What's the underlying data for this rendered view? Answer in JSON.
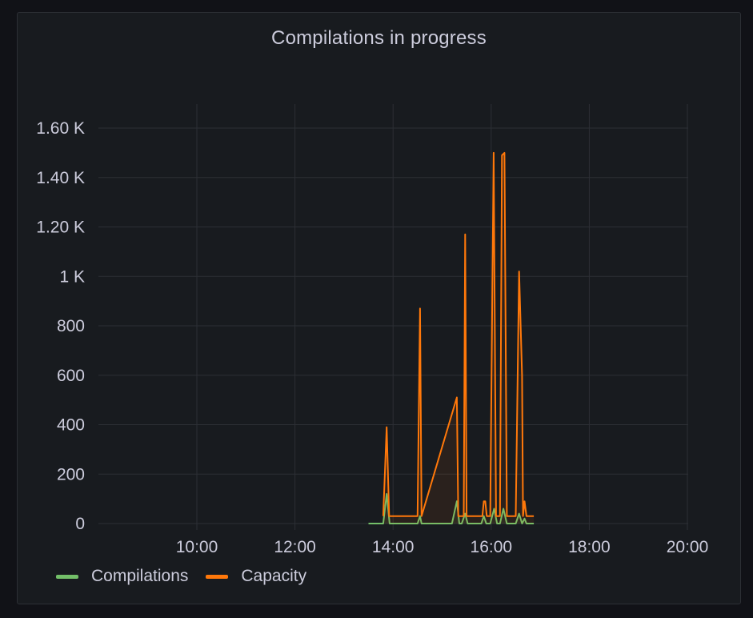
{
  "panel": {
    "title": "Compilations in progress"
  },
  "colors": {
    "background": "#181b1f",
    "grid": "#2c2f35",
    "text": "#ccccdc",
    "compilations": "#73bf69",
    "capacity": "#ff780a"
  },
  "chart_data": {
    "type": "line",
    "title": "Compilations in progress",
    "xlabel": "",
    "ylabel": "",
    "x_ticks": [
      "10:00",
      "12:00",
      "14:00",
      "16:00",
      "18:00",
      "20:00"
    ],
    "y_ticks": [
      "0",
      "200",
      "400",
      "600",
      "800",
      "1 K",
      "1.20 K",
      "1.40 K",
      "1.60 K"
    ],
    "ylim": [
      0,
      1700
    ],
    "xlim_hours": [
      8.0,
      20.0
    ],
    "grid": true,
    "legend_position": "bottom-left",
    "series": [
      {
        "name": "Compilations",
        "color": "#73bf69",
        "points": [
          [
            13.5,
            0
          ],
          [
            13.8,
            0
          ],
          [
            13.87,
            120
          ],
          [
            13.93,
            0
          ],
          [
            14.5,
            0
          ],
          [
            14.55,
            30
          ],
          [
            14.58,
            0
          ],
          [
            15.2,
            0
          ],
          [
            15.3,
            90
          ],
          [
            15.35,
            0
          ],
          [
            15.4,
            0
          ],
          [
            15.47,
            40
          ],
          [
            15.52,
            0
          ],
          [
            15.8,
            0
          ],
          [
            15.85,
            30
          ],
          [
            15.9,
            0
          ],
          [
            15.98,
            0
          ],
          [
            16.06,
            60
          ],
          [
            16.12,
            0
          ],
          [
            16.18,
            0
          ],
          [
            16.25,
            60
          ],
          [
            16.32,
            0
          ],
          [
            16.5,
            0
          ],
          [
            16.57,
            40
          ],
          [
            16.63,
            0
          ],
          [
            16.68,
            20
          ],
          [
            16.72,
            0
          ],
          [
            16.87,
            0
          ]
        ]
      },
      {
        "name": "Capacity",
        "color": "#ff780a",
        "points": [
          [
            13.8,
            30
          ],
          [
            13.87,
            390
          ],
          [
            13.92,
            30
          ],
          [
            14.22,
            30
          ],
          [
            14.5,
            30
          ],
          [
            14.55,
            870
          ],
          [
            14.58,
            30
          ],
          [
            15.3,
            510
          ],
          [
            15.33,
            30
          ],
          [
            15.44,
            30
          ],
          [
            15.47,
            1170
          ],
          [
            15.5,
            30
          ],
          [
            15.82,
            30
          ],
          [
            15.85,
            90
          ],
          [
            15.88,
            90
          ],
          [
            15.91,
            30
          ],
          [
            15.98,
            30
          ],
          [
            16.05,
            1500
          ],
          [
            16.1,
            30
          ],
          [
            16.18,
            30
          ],
          [
            16.22,
            1490
          ],
          [
            16.27,
            1500
          ],
          [
            16.32,
            30
          ],
          [
            16.5,
            30
          ],
          [
            16.57,
            1020
          ],
          [
            16.63,
            600
          ],
          [
            16.65,
            30
          ],
          [
            16.68,
            90
          ],
          [
            16.72,
            30
          ],
          [
            16.87,
            30
          ]
        ]
      }
    ]
  }
}
